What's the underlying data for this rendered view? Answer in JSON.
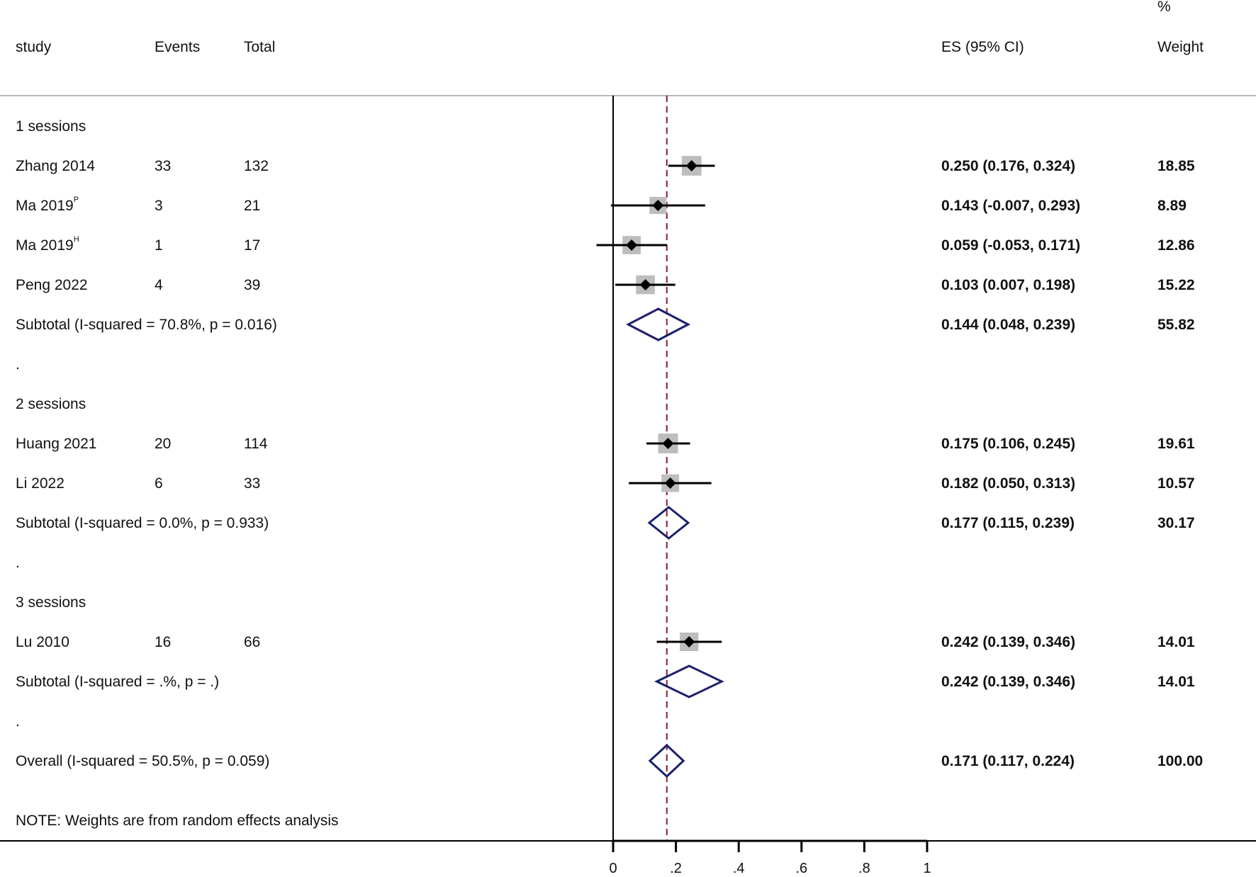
{
  "chart_data": {
    "type": "forest",
    "header": {
      "col_study": "study",
      "col_events": "Events",
      "col_total": "Total",
      "col_es": "ES (95% CI)",
      "col_weight_top": "%",
      "col_weight": "Weight"
    },
    "xlim": [
      0,
      1
    ],
    "ticks": [
      0,
      0.2,
      0.4,
      0.6,
      0.8,
      1
    ],
    "tick_labels": [
      "0",
      ".2",
      ".4",
      ".6",
      ".8",
      "1"
    ],
    "null_line": 0,
    "pooled_line": 0.171,
    "rows": [
      {
        "kind": "group",
        "label": "1 sessions"
      },
      {
        "kind": "study",
        "label": "Zhang 2014",
        "sup": "",
        "events": "33",
        "total": "132",
        "es": 0.25,
        "lo": 0.176,
        "hi": 0.324,
        "es_text": "0.250 (0.176, 0.324)",
        "weight": "18.85"
      },
      {
        "kind": "study",
        "label": "Ma 2019",
        "sup": "P",
        "events": "3",
        "total": "21",
        "es": 0.143,
        "lo": -0.007,
        "hi": 0.293,
        "es_text": "0.143 (-0.007, 0.293)",
        "weight": "8.89"
      },
      {
        "kind": "study",
        "label": "Ma 2019",
        "sup": "H",
        "events": "1",
        "total": "17",
        "es": 0.059,
        "lo": -0.053,
        "hi": 0.171,
        "es_text": "0.059 (-0.053, 0.171)",
        "weight": "12.86"
      },
      {
        "kind": "study",
        "label": "Peng 2022",
        "sup": "",
        "events": "4",
        "total": "39",
        "es": 0.103,
        "lo": 0.007,
        "hi": 0.198,
        "es_text": "0.103 (0.007, 0.198)",
        "weight": "15.22"
      },
      {
        "kind": "subtotal",
        "label": "Subtotal  (I-squared = 70.8%, p = 0.016)",
        "es": 0.144,
        "lo": 0.048,
        "hi": 0.239,
        "es_text": "0.144 (0.048, 0.239)",
        "weight": "55.82"
      },
      {
        "kind": "spacer",
        "label": "."
      },
      {
        "kind": "group",
        "label": "2 sessions"
      },
      {
        "kind": "study",
        "label": "Huang  2021",
        "sup": "",
        "events": "20",
        "total": "114",
        "es": 0.175,
        "lo": 0.106,
        "hi": 0.245,
        "es_text": "0.175 (0.106, 0.245)",
        "weight": "19.61"
      },
      {
        "kind": "study",
        "label": "Li  2022",
        "sup": "",
        "events": "6",
        "total": "33",
        "es": 0.182,
        "lo": 0.05,
        "hi": 0.313,
        "es_text": "0.182 (0.050, 0.313)",
        "weight": "10.57"
      },
      {
        "kind": "subtotal",
        "label": "Subtotal  (I-squared = 0.0%, p = 0.933)",
        "es": 0.177,
        "lo": 0.115,
        "hi": 0.239,
        "es_text": "0.177 (0.115, 0.239)",
        "weight": "30.17"
      },
      {
        "kind": "spacer",
        "label": "."
      },
      {
        "kind": "group",
        "label": "3 sessions"
      },
      {
        "kind": "study",
        "label": "Lu 2010",
        "sup": "",
        "events": "16",
        "total": "66",
        "es": 0.242,
        "lo": 0.139,
        "hi": 0.346,
        "es_text": "0.242 (0.139, 0.346)",
        "weight": "14.01"
      },
      {
        "kind": "subtotal",
        "label": "Subtotal  (I-squared = .%, p = .)",
        "es": 0.242,
        "lo": 0.139,
        "hi": 0.346,
        "es_text": "0.242 (0.139, 0.346)",
        "weight": "14.01"
      },
      {
        "kind": "spacer",
        "label": "."
      },
      {
        "kind": "overall",
        "label": "Overall  (I-squared = 50.5%, p = 0.059)",
        "es": 0.171,
        "lo": 0.117,
        "hi": 0.224,
        "es_text": "0.171 (0.117, 0.224)",
        "weight": "100.00"
      }
    ],
    "note": "NOTE: Weights are from random effects analysis",
    "colors": {
      "text": "#111111",
      "ci_line": "#000000",
      "point": "#000000",
      "weight_box": "#bdbdbd",
      "diamond": "#1b1f6b",
      "pooled_line": "#8b1a2b",
      "axis": "#000000",
      "header_rule": "#b8b8b8"
    }
  }
}
